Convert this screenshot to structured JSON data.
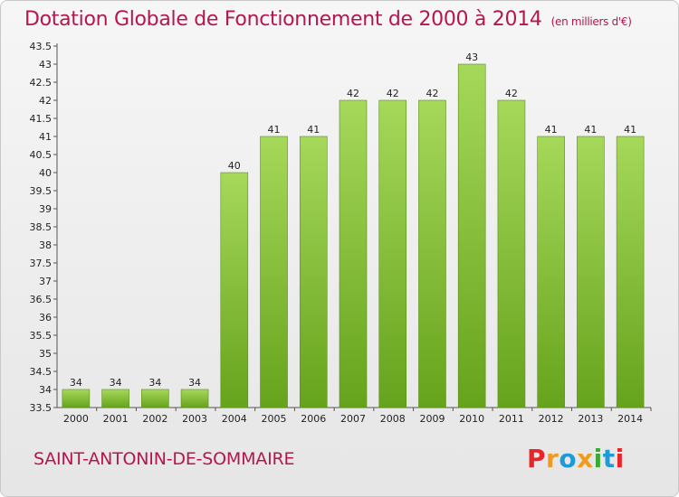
{
  "header": {
    "title": "Dotation Globale de Fonctionnement de 2000 à 2014",
    "unit": "(en milliers d'€)"
  },
  "footer": {
    "commune": "SAINT-ANTONIN-DE-SOMMAIRE",
    "logo": "Proxiti",
    "logo_colors": [
      "#e8262a",
      "#f39a1b",
      "#1c9bd8",
      "#f39a1b",
      "#3aa935",
      "#1c9bd8",
      "#e8262a"
    ]
  },
  "colors": {
    "bar_light": "#a6d85a",
    "bar_dark": "#66a31c",
    "accent": "#b5164f"
  },
  "chart_data": {
    "type": "bar",
    "categories": [
      "2000",
      "2001",
      "2002",
      "2003",
      "2004",
      "2005",
      "2006",
      "2007",
      "2008",
      "2009",
      "2010",
      "2011",
      "2012",
      "2013",
      "2014"
    ],
    "values": [
      34,
      34,
      34,
      34,
      40,
      41,
      41,
      42,
      42,
      42,
      43,
      42,
      41,
      41,
      41
    ],
    "data_labels": [
      "34",
      "34",
      "34",
      "34",
      "40",
      "41",
      "41",
      "42",
      "42",
      "42",
      "43",
      "42",
      "41",
      "41",
      "41"
    ],
    "title": "Dotation Globale de Fonctionnement de 2000 à 2014",
    "xlabel": "",
    "ylabel": "",
    "ylim": [
      33.5,
      43.5
    ],
    "yticks": [
      "33.5",
      "34",
      "34.5",
      "35",
      "35.5",
      "36",
      "36.5",
      "37",
      "37.5",
      "38",
      "38.5",
      "39",
      "39.5",
      "40",
      "40.5",
      "41",
      "41.5",
      "42",
      "42.5",
      "43",
      "43.5"
    ],
    "grid": false,
    "legend": "none"
  }
}
